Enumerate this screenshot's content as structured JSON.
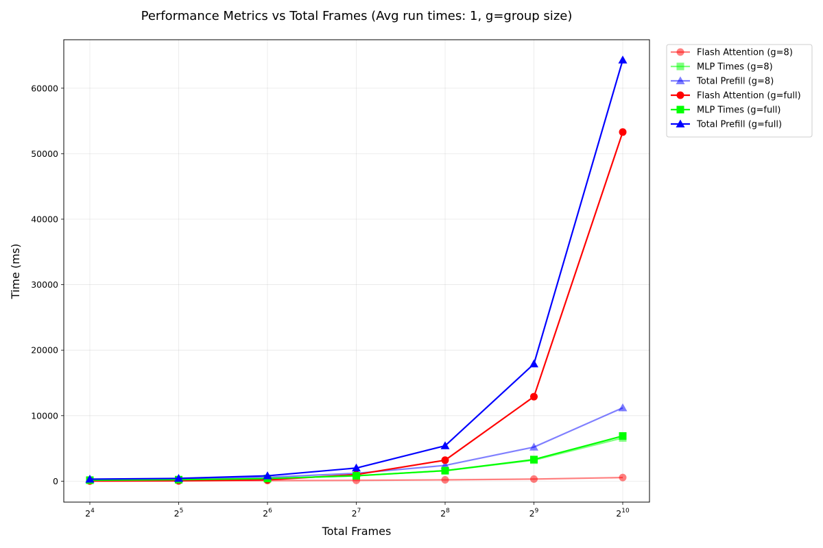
{
  "chart_data": {
    "type": "line",
    "title": "Performance Metrics vs Total Frames (Avg run times: 1, g=group size)",
    "xlabel": "Total Frames",
    "ylabel": "Time (ms)",
    "x_scale": "log2",
    "x": [
      16,
      32,
      64,
      128,
      256,
      512,
      1024
    ],
    "x_tick_labels": [
      {
        "base": "2",
        "exp": "4"
      },
      {
        "base": "2",
        "exp": "5"
      },
      {
        "base": "2",
        "exp": "6"
      },
      {
        "base": "2",
        "exp": "7"
      },
      {
        "base": "2",
        "exp": "8"
      },
      {
        "base": "2",
        "exp": "9"
      },
      {
        "base": "2",
        "exp": "10"
      }
    ],
    "y_ticks": [
      0,
      10000,
      20000,
      30000,
      40000,
      50000,
      60000
    ],
    "y_tick_labels": [
      "0",
      "10000",
      "20000",
      "30000",
      "40000",
      "50000",
      "60000"
    ],
    "ylim": [
      -3200,
      67400
    ],
    "grid": true,
    "legend_position": "outside-top-right",
    "series": [
      {
        "name": "Flash Attention (g=8)",
        "color": "#ff0000",
        "alpha": 0.5,
        "marker": "circle",
        "values": [
          20,
          40,
          80,
          120,
          200,
          320,
          550
        ]
      },
      {
        "name": "MLP Times (g=8)",
        "color": "#00ff00",
        "alpha": 0.5,
        "marker": "square",
        "values": [
          150,
          220,
          400,
          820,
          1600,
          3200,
          6600
        ]
      },
      {
        "name": "Total Prefill (g=8)",
        "color": "#0000ff",
        "alpha": 0.5,
        "marker": "triangle",
        "values": [
          200,
          350,
          600,
          1200,
          2400,
          5200,
          11200
        ]
      },
      {
        "name": "Flash Attention (g=full)",
        "color": "#ff0000",
        "alpha": 1.0,
        "marker": "circle",
        "values": [
          30,
          60,
          200,
          1000,
          3200,
          12900,
          53300
        ]
      },
      {
        "name": "MLP Times (g=full)",
        "color": "#00ff00",
        "alpha": 1.0,
        "marker": "square",
        "values": [
          150,
          220,
          400,
          820,
          1600,
          3300,
          6900
        ]
      },
      {
        "name": "Total Prefill (g=full)",
        "color": "#0000ff",
        "alpha": 1.0,
        "marker": "triangle",
        "values": [
          300,
          420,
          820,
          2000,
          5400,
          17900,
          64300
        ]
      }
    ]
  }
}
